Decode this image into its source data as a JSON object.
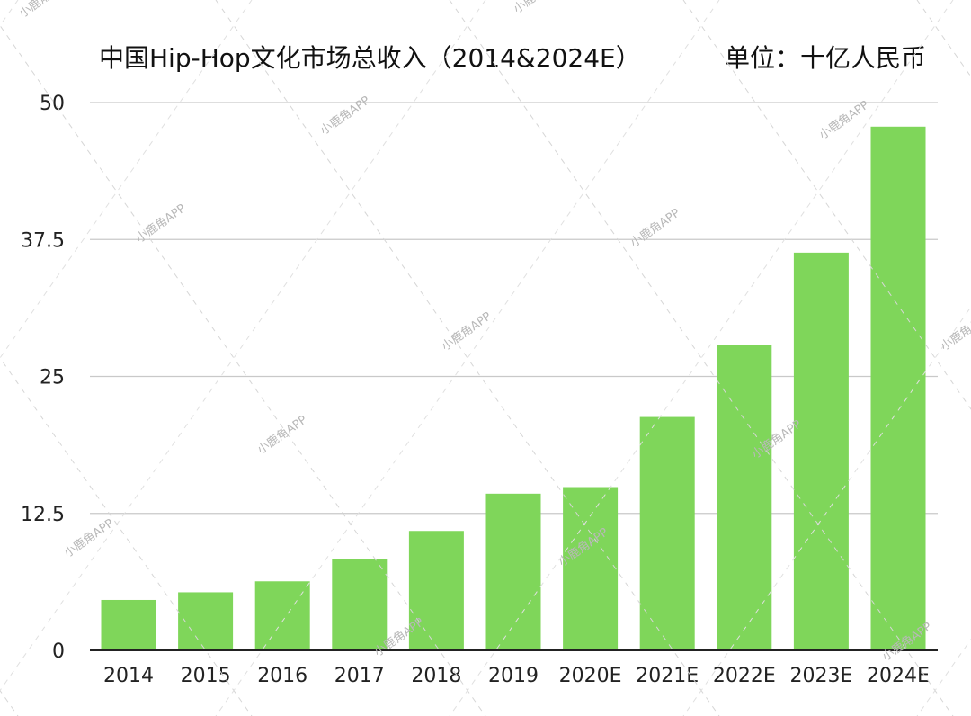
{
  "chart_data": {
    "type": "bar",
    "title": "中国Hip-Hop文化市场总收入（2014&2024E）",
    "unit": "单位：十亿人民币",
    "categories": [
      "2014",
      "2015",
      "2016",
      "2017",
      "2018",
      "2019",
      "2020E",
      "2021E",
      "2022E",
      "2023E",
      "2024E"
    ],
    "values": [
      4.6,
      5.3,
      6.3,
      8.3,
      10.9,
      14.3,
      14.9,
      21.3,
      27.9,
      36.3,
      47.8
    ],
    "ylim": [
      0,
      50
    ],
    "yticks": [
      "0",
      "12.5",
      "25",
      "37.5",
      "50"
    ],
    "grid": true,
    "legend": "none",
    "colors": {
      "bar": "#7fd65a",
      "grid": "#c9c9c9",
      "axis": "#222222"
    }
  },
  "watermark": {
    "text": "小鹿角APP"
  }
}
